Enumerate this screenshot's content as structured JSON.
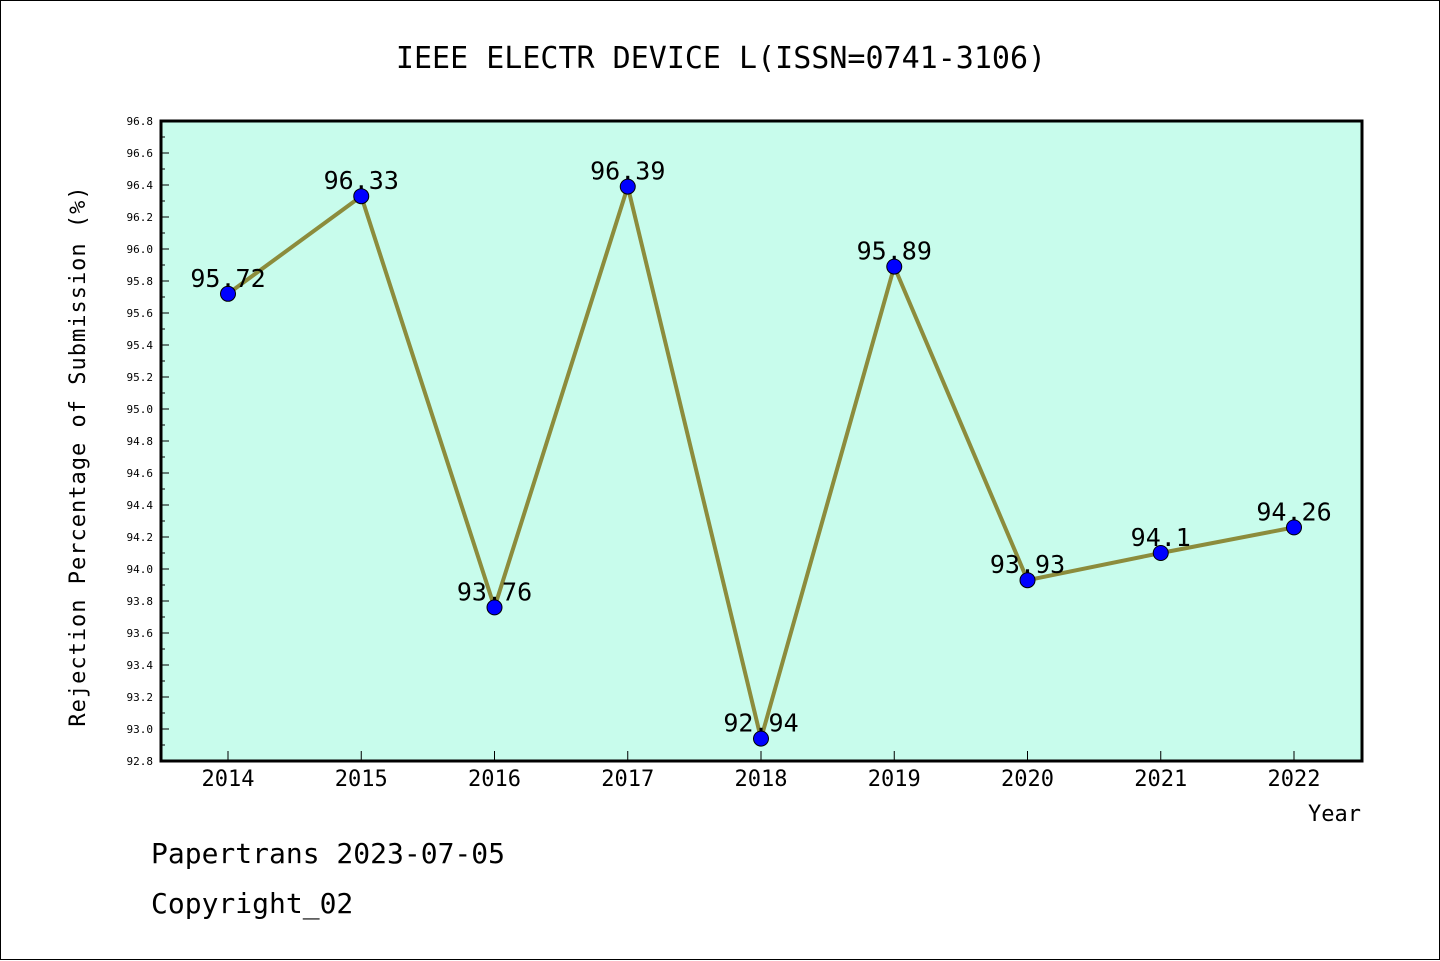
{
  "chart_data": {
    "type": "line",
    "title": "IEEE ELECTR DEVICE L(ISSN=0741-3106)",
    "xlabel": "Year",
    "ylabel": "Rejection Percentage of Submission (%)",
    "categories": [
      "2014",
      "2015",
      "2016",
      "2017",
      "2018",
      "2019",
      "2020",
      "2021",
      "2022"
    ],
    "series": [
      {
        "values": [
          95.72,
          96.33,
          93.76,
          96.39,
          92.94,
          95.89,
          93.93,
          94.1,
          94.26
        ],
        "labels": [
          "95.72",
          "96.33",
          "93.76",
          "96.39",
          "92.94",
          "95.89",
          "93.93",
          "94.1",
          "94.26"
        ]
      }
    ],
    "ylim": [
      92.8,
      96.8
    ],
    "yticks": [
      "92.8",
      "93.0",
      "93.2",
      "93.4",
      "93.6",
      "93.8",
      "94.0",
      "94.2",
      "94.4",
      "94.6",
      "94.8",
      "95.0",
      "95.2",
      "95.4",
      "95.6",
      "95.8",
      "96.0",
      "96.2",
      "96.4",
      "96.6",
      "96.8"
    ],
    "grid": false,
    "colors": {
      "plot_background": "#c8fcec",
      "line": "#8c8c3c",
      "marker": "#0000ff"
    }
  },
  "footer": {
    "line1": "Papertrans 2023-07-05",
    "line2": "Copyright_02"
  }
}
